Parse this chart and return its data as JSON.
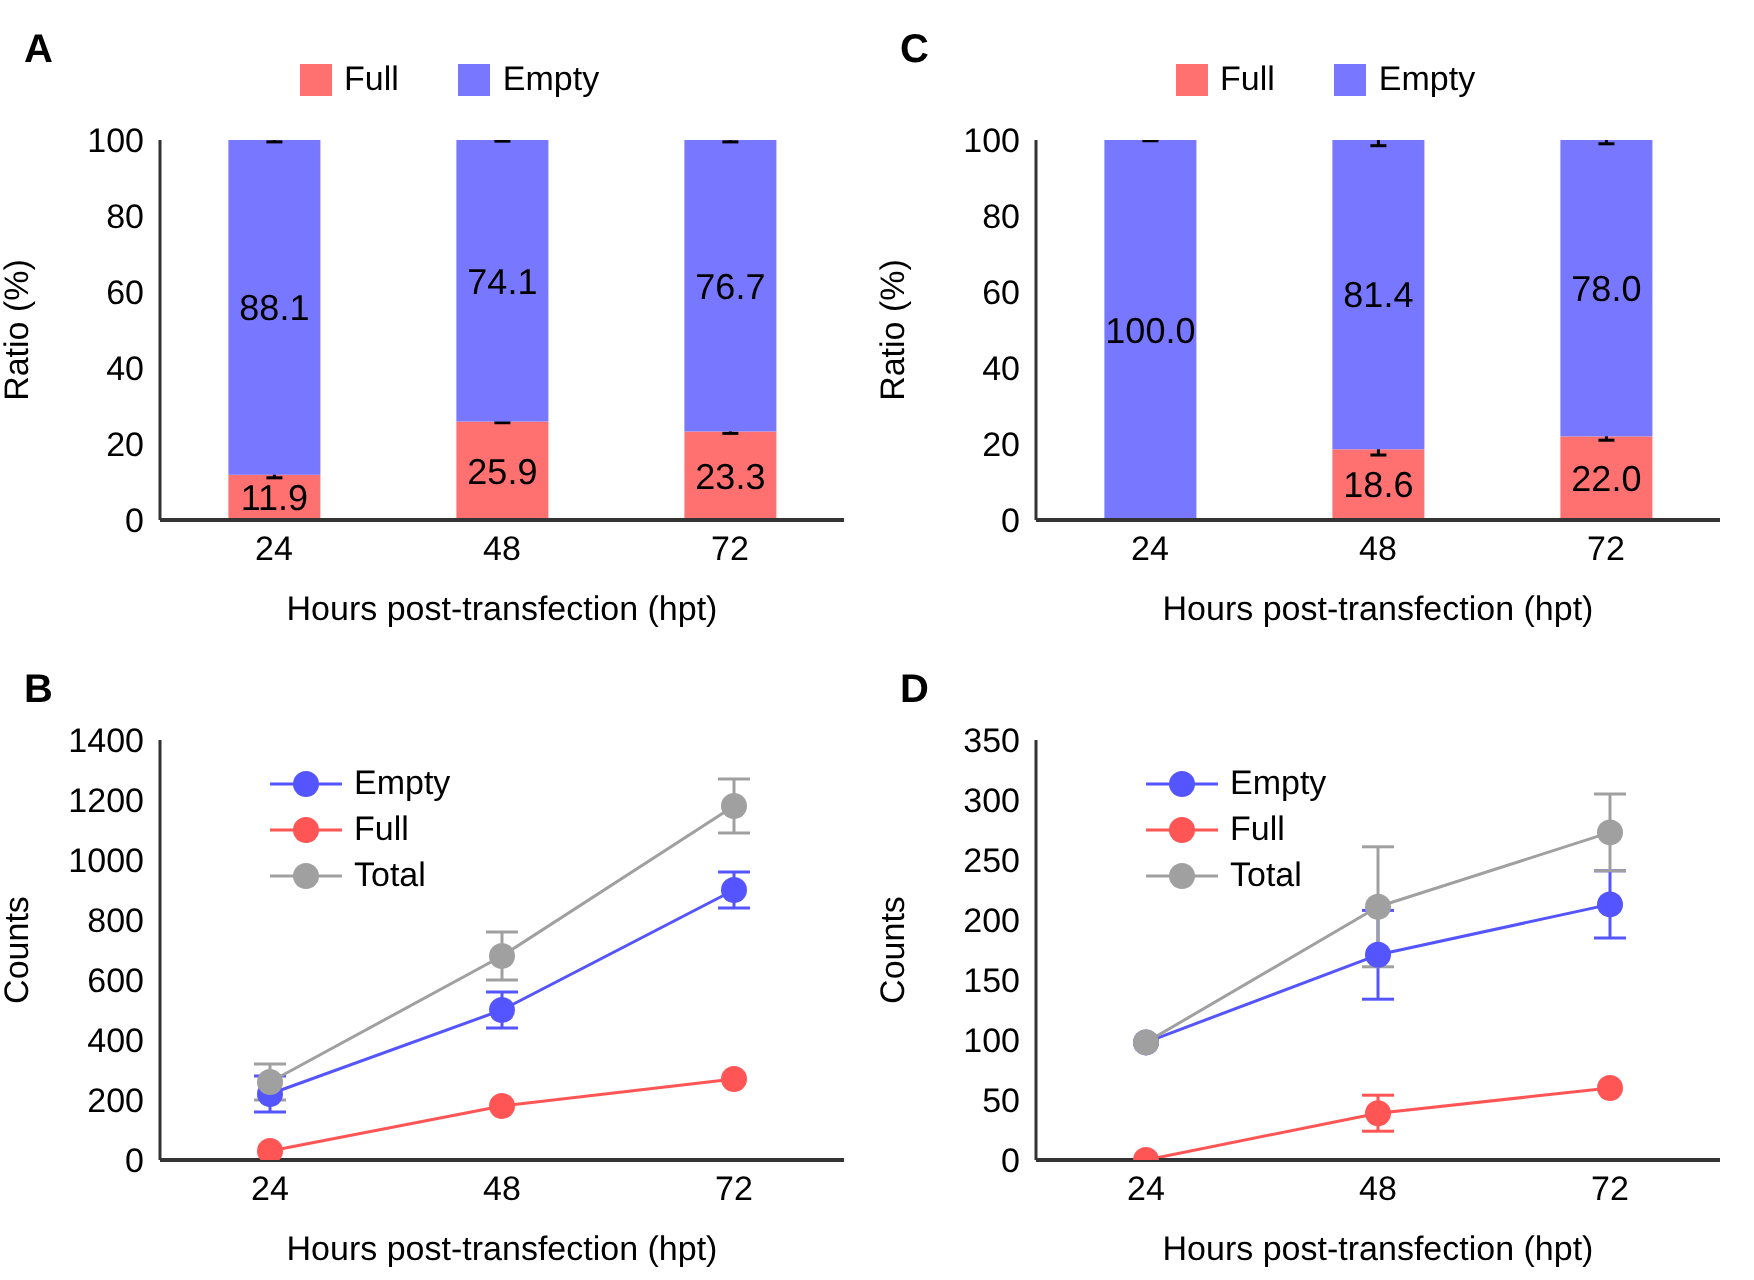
{
  "chart_data": [
    {
      "type": "bar",
      "title": "A",
      "xlabel": "Hours post-transfection (hpt)",
      "ylabel": "Ratio (%)",
      "categories": [
        "24",
        "48",
        "72"
      ],
      "stacked": true,
      "ylim": [
        0,
        100
      ],
      "yticks": [
        0,
        20,
        40,
        60,
        80,
        100
      ],
      "legend": "top",
      "series": [
        {
          "name": "Full",
          "color": "#ff7070",
          "values": [
            11.9,
            25.9,
            23.3
          ],
          "errors": [
            0.8,
            0.3,
            0.5
          ],
          "value_labels": [
            "11.9",
            "25.9",
            "23.3"
          ]
        },
        {
          "name": "Empty",
          "color": "#7777ff",
          "values": [
            88.1,
            74.1,
            76.7
          ],
          "errors": [
            0.5,
            0.3,
            0.5
          ],
          "value_labels": [
            "88.1",
            "74.1",
            "76.7"
          ]
        }
      ]
    },
    {
      "type": "bar",
      "title": "C",
      "xlabel": "Hours post-transfection (hpt)",
      "ylabel": "Ratio (%)",
      "categories": [
        "24",
        "48",
        "72"
      ],
      "stacked": true,
      "ylim": [
        0,
        100
      ],
      "yticks": [
        0,
        20,
        40,
        60,
        80,
        100
      ],
      "legend": "top",
      "series": [
        {
          "name": "Full",
          "color": "#ff7070",
          "values": [
            0,
            18.6,
            22.0
          ],
          "errors": [
            null,
            1.5,
            1.0
          ],
          "value_labels": [
            null,
            "18.6",
            "22.0"
          ]
        },
        {
          "name": "Empty",
          "color": "#7777ff",
          "values": [
            100.0,
            81.4,
            78.0
          ],
          "errors": [
            0.2,
            1.5,
            1.0
          ],
          "value_labels": [
            "100.0",
            "81.4",
            "78.0"
          ]
        }
      ]
    },
    {
      "type": "line",
      "title": "B",
      "xlabel": "Hours post-transfection (hpt)",
      "ylabel": "Counts",
      "categories": [
        "24",
        "48",
        "72"
      ],
      "ylim": [
        0,
        1400
      ],
      "yticks": [
        0,
        200,
        400,
        600,
        800,
        1000,
        1200,
        1400
      ],
      "legend": "top left",
      "marker": "circle",
      "series": [
        {
          "name": "Empty",
          "color": "#5555ff",
          "values": [
            220,
            500,
            900
          ],
          "errors": [
            60,
            60,
            60
          ]
        },
        {
          "name": "Full",
          "color": "#ff5555",
          "values": [
            30,
            180,
            270
          ],
          "errors": [
            null,
            null,
            null
          ]
        },
        {
          "name": "Total",
          "color": "#a0a0a0",
          "values": [
            260,
            680,
            1180
          ],
          "errors": [
            60,
            80,
            90
          ]
        }
      ]
    },
    {
      "type": "line",
      "title": "D",
      "xlabel": "Hours post-transfection (hpt)",
      "ylabel": "Counts",
      "categories": [
        "24",
        "48",
        "72"
      ],
      "ylim": [
        0,
        350
      ],
      "yticks": [
        0,
        50,
        100,
        150,
        200,
        250,
        300,
        350
      ],
      "legend": "top left",
      "marker": "circle",
      "series": [
        {
          "name": "Empty",
          "color": "#5555ff",
          "values": [
            98,
            171,
            213
          ],
          "errors": [
            null,
            37,
            28
          ]
        },
        {
          "name": "Full",
          "color": "#ff5555",
          "values": [
            0,
            39,
            60
          ],
          "errors": [
            null,
            15,
            null
          ]
        },
        {
          "name": "Total",
          "color": "#a0a0a0",
          "values": [
            98,
            211,
            273
          ],
          "errors": [
            null,
            50,
            32
          ]
        }
      ]
    }
  ]
}
